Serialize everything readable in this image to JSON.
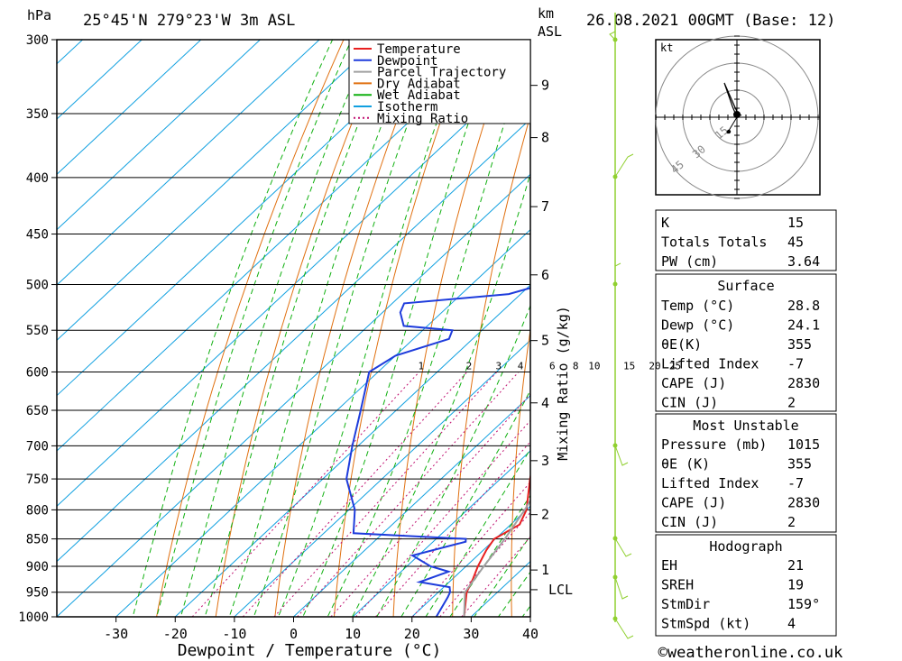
{
  "header": {
    "pressure_unit": "hPa",
    "location": "25°45'N  279°23'W  3m  ASL",
    "km_unit": "km",
    "km_sub": "ASL",
    "run": "26.08.2021  00GMT  (Base: 12)"
  },
  "footer": {
    "xlabel": "Dewpoint / Temperature (°C)",
    "y2label": "Mixing Ratio (g/kg)",
    "credit": "©weatheronline.co.uk"
  },
  "legend": [
    {
      "label": "Temperature",
      "color": "#e82020"
    },
    {
      "label": "Dewpoint",
      "color": "#1e3cdc"
    },
    {
      "label": "Parcel Trajectory",
      "color": "#a0a0a0"
    },
    {
      "label": "Dry Adiabat",
      "color": "#e07010"
    },
    {
      "label": "Wet Adiabat",
      "color": "#10b010"
    },
    {
      "label": "Isotherm",
      "color": "#10a0e0"
    },
    {
      "label": "Mixing Ratio",
      "color": "#c01070"
    }
  ],
  "colors": {
    "temperature": "#e82020",
    "dewpoint": "#1e3cdc",
    "parcel": "#a0a0a0",
    "dry_adiabat": "#e07010",
    "wet_adiabat": "#10b010",
    "isotherm": "#10a0e0",
    "mixing_ratio": "#c01070",
    "wind": "#90d030"
  },
  "chart_data": {
    "type": "line",
    "xlabel": "Dewpoint / Temperature (°C)",
    "ylabel": "hPa",
    "xlim": [
      -40,
      40
    ],
    "ylim": [
      1000,
      300
    ],
    "y_scale": "log",
    "x_ticks": [
      -30,
      -20,
      -10,
      0,
      10,
      20,
      30,
      40
    ],
    "y_ticks": [
      300,
      350,
      400,
      450,
      500,
      550,
      600,
      650,
      700,
      750,
      800,
      850,
      900,
      950,
      1000
    ],
    "km_ticks": [
      {
        "label": "9",
        "p": 330
      },
      {
        "label": "8",
        "p": 368
      },
      {
        "label": "7",
        "p": 425
      },
      {
        "label": "6",
        "p": 490
      },
      {
        "label": "5",
        "p": 562
      },
      {
        "label": "4",
        "p": 640
      },
      {
        "label": "3",
        "p": 722
      },
      {
        "label": "2",
        "p": 808
      },
      {
        "label": "1",
        "p": 907
      },
      {
        "label": "LCL",
        "p": 945
      }
    ],
    "mixing_ratio_labels": [
      "1",
      "2",
      "3",
      "4",
      "6",
      "8",
      "10",
      "15",
      "20",
      "25"
    ],
    "series": [
      {
        "name": "Temperature",
        "pressure": [
          1000,
          950,
          925,
          900,
          870,
          850,
          825,
          800,
          750,
          700,
          650,
          600,
          550,
          500,
          480,
          460,
          450,
          400,
          370,
          350,
          330,
          315,
          300
        ],
        "values": [
          28.8,
          24.8,
          23.5,
          22,
          20.5,
          19.8,
          21.5,
          20,
          15,
          10.2,
          5,
          -0.5,
          -6.8,
          -15.5,
          -14.8,
          -16.5,
          -17.5,
          -26.5,
          -31.5,
          -35,
          -39.8,
          -43.5,
          -46
        ]
      },
      {
        "name": "Dewpoint",
        "pressure": [
          1000,
          960,
          950,
          940,
          930,
          910,
          900,
          880,
          855,
          850,
          840,
          800,
          750,
          700,
          650,
          600,
          580,
          560,
          550,
          545,
          530,
          520,
          510,
          500,
          460,
          450,
          400,
          370,
          360,
          350,
          340,
          330,
          320,
          312,
          300
        ],
        "values": [
          24.1,
          22.5,
          22,
          21,
          15,
          18,
          14,
          9,
          15.5,
          15,
          -5,
          -9,
          -16,
          -21,
          -26,
          -31.5,
          -30,
          -24,
          -25,
          -34,
          -37,
          -38,
          -22,
          -18,
          -20.5,
          -21.5,
          -31,
          -35.5,
          -38,
          -38.5,
          -39,
          -40.5,
          -52.5,
          -45,
          -51
        ]
      },
      {
        "name": "Parcel Trajectory",
        "pressure": [
          1000,
          950,
          900,
          850,
          800,
          750,
          700,
          650,
          600,
          550,
          500,
          450,
          400,
          380
        ],
        "values": [
          28.8,
          24.5,
          23,
          21.6,
          19.7,
          17.3,
          14.8,
          12,
          8.8,
          5,
          0,
          -7,
          -15,
          -18.6
        ]
      }
    ],
    "hodograph": {
      "unit": "kt",
      "rings": [
        "15",
        "30",
        "45"
      ]
    }
  },
  "indices": [
    {
      "label": "K",
      "value": "15"
    },
    {
      "label": "Totals Totals",
      "value": "45"
    },
    {
      "label": "PW (cm)",
      "value": "3.64"
    }
  ],
  "surface": {
    "title": "Surface",
    "rows": [
      {
        "label": "Temp (°C)",
        "value": "28.8"
      },
      {
        "label": "Dewp (°C)",
        "value": "24.1"
      },
      {
        "label": "θE(K)",
        "value": "355"
      },
      {
        "label": "Lifted Index",
        "value": "-7"
      },
      {
        "label": "CAPE (J)",
        "value": "2830"
      },
      {
        "label": "CIN (J)",
        "value": "2"
      }
    ]
  },
  "most_unstable": {
    "title": "Most Unstable",
    "rows": [
      {
        "label": "Pressure (mb)",
        "value": "1015"
      },
      {
        "label": "θE (K)",
        "value": "355"
      },
      {
        "label": "Lifted Index",
        "value": "-7"
      },
      {
        "label": "CAPE (J)",
        "value": "2830"
      },
      {
        "label": "CIN (J)",
        "value": "2"
      }
    ]
  },
  "hodograph_table": {
    "title": "Hodograph",
    "rows": [
      {
        "label": "EH",
        "value": "21"
      },
      {
        "label": "SREH",
        "value": "19"
      },
      {
        "label": "StmDir",
        "value": "159°"
      },
      {
        "label": "StmSpd (kt)",
        "value": "4"
      }
    ]
  }
}
